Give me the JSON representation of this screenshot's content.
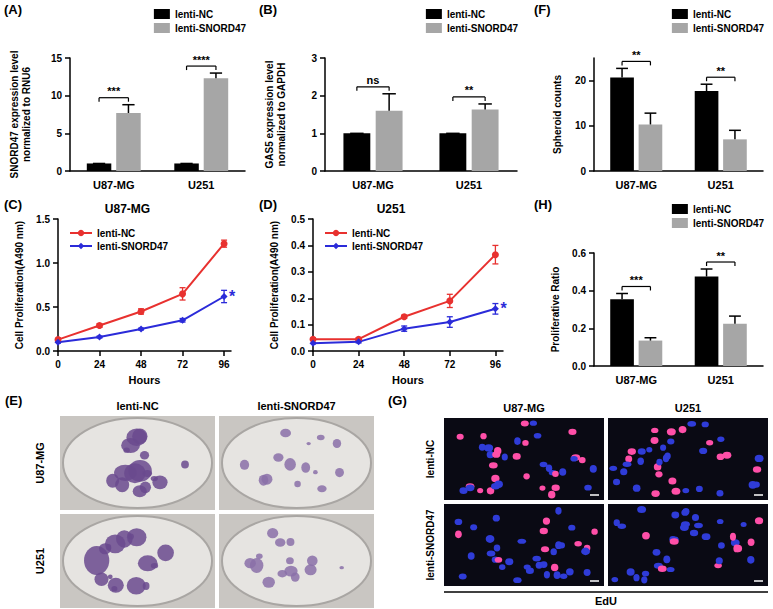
{
  "chart_data": [
    {
      "type": "bar",
      "panel_label": "(A)",
      "categories": [
        "U87-MG",
        "U251"
      ],
      "ylabel": [
        "SNORD47 expression level",
        "normalized to RNU6"
      ],
      "ylim": [
        0,
        15
      ],
      "yticks": [
        0,
        5,
        10,
        15
      ],
      "legend": "top right",
      "grid": false,
      "series": [
        {
          "name": "lenti-NC",
          "color": "#000000",
          "values": [
            1,
            1
          ],
          "errors": [
            0,
            0
          ]
        },
        {
          "name": "lenti-SNORD47",
          "color": "#a6a6a6",
          "values": [
            7.7,
            12.3
          ],
          "errors": [
            1.1,
            0.7
          ]
        }
      ],
      "significance": [
        "***",
        "****"
      ]
    },
    {
      "type": "bar",
      "panel_label": "(B)",
      "categories": [
        "U87-MG",
        "U251"
      ],
      "ylabel": [
        "GAS5 expression level",
        "normalized to GAPDH"
      ],
      "ylim": [
        0,
        3
      ],
      "yticks": [
        0,
        1,
        2,
        3
      ],
      "legend": "top right",
      "grid": false,
      "series": [
        {
          "name": "lenti-NC",
          "color": "#000000",
          "values": [
            1,
            1
          ],
          "errors": [
            0,
            0
          ]
        },
        {
          "name": "lenti-SNORD47",
          "color": "#a6a6a6",
          "values": [
            1.6,
            1.63
          ],
          "errors": [
            0.45,
            0.15
          ]
        }
      ],
      "significance": [
        "ns",
        "**"
      ]
    },
    {
      "type": "bar",
      "panel_label": "(F)",
      "categories": [
        "U87-MG",
        "U251"
      ],
      "ylabel": [
        "Spheroid counts"
      ],
      "ylim": [
        0,
        25
      ],
      "yticks": [
        0,
        10,
        20
      ],
      "legend": "top right",
      "grid": false,
      "series": [
        {
          "name": "lenti-NC",
          "color": "#000000",
          "values": [
            20.7,
            17.7
          ],
          "errors": [
            2.0,
            1.5
          ]
        },
        {
          "name": "lenti-SNORD47",
          "color": "#a6a6a6",
          "values": [
            10.3,
            7.0
          ],
          "errors": [
            2.5,
            2.0
          ]
        }
      ],
      "significance": [
        "**",
        "**"
      ]
    },
    {
      "type": "line",
      "panel_label": "(C)",
      "title": "U87-MG",
      "xlabel": "Hours",
      "ylabel": "Cell Proliferation(A490 nm)",
      "x": [
        0,
        24,
        48,
        72,
        96
      ],
      "xlim": [
        0,
        100
      ],
      "xticks": [
        0,
        24,
        48,
        72,
        96
      ],
      "ylim": [
        0,
        1.5
      ],
      "yticks": [
        {
          "value": 0,
          "label": "0.0"
        },
        {
          "value": 0.5,
          "label": "0.5"
        },
        {
          "value": 1,
          "label": "1.0"
        },
        {
          "value": 1.5,
          "label": "1.5"
        }
      ],
      "legend": "top left",
      "grid": false,
      "series": [
        {
          "name": "lenti-NC",
          "color": "#e8312f",
          "marker": "circle",
          "values": [
            0.13,
            0.29,
            0.45,
            0.65,
            1.22
          ],
          "errors": [
            0.02,
            0.02,
            0.03,
            0.07,
            0.04
          ]
        },
        {
          "name": "lenti-SNORD47",
          "color": "#2b2bd9",
          "marker": "diamond",
          "values": [
            0.1,
            0.16,
            0.25,
            0.35,
            0.62
          ],
          "errors": [
            0.01,
            0.01,
            0.01,
            0.02,
            0.07
          ],
          "annotation": "*"
        }
      ]
    },
    {
      "type": "line",
      "panel_label": "(D)",
      "title": "U251",
      "xlabel": "Hours",
      "ylabel": "Cell Proliferation(A490 nm)",
      "x": [
        0,
        24,
        48,
        72,
        96
      ],
      "xlim": [
        0,
        100
      ],
      "xticks": [
        0,
        24,
        48,
        72,
        96
      ],
      "ylim": [
        0,
        0.5
      ],
      "yticks": [
        {
          "value": 0,
          "label": "0.0"
        },
        {
          "value": 0.1,
          "label": "0.1"
        },
        {
          "value": 0.2,
          "label": "0.2"
        },
        {
          "value": 0.3,
          "label": "0.3"
        },
        {
          "value": 0.4,
          "label": "0.4"
        },
        {
          "value": 0.5,
          "label": "0.5"
        }
      ],
      "legend": "top left",
      "grid": false,
      "series": [
        {
          "name": "lenti-NC",
          "color": "#e8312f",
          "marker": "circle",
          "values": [
            0.045,
            0.045,
            0.13,
            0.19,
            0.365
          ],
          "errors": [
            0.005,
            0.005,
            0.006,
            0.025,
            0.035
          ]
        },
        {
          "name": "lenti-SNORD47",
          "color": "#2b2bd9",
          "marker": "diamond",
          "values": [
            0.03,
            0.035,
            0.085,
            0.11,
            0.16
          ],
          "errors": [
            0.003,
            0.004,
            0.01,
            0.02,
            0.02
          ],
          "annotation": "*"
        }
      ]
    },
    {
      "type": "bar",
      "panel_label": "(H)",
      "categories": [
        "U87-MG",
        "U251"
      ],
      "ylabel": [
        "Proliferative Ratio"
      ],
      "ylim": [
        0,
        0.6
      ],
      "yticks": [
        {
          "value": 0,
          "label": "0.0"
        },
        {
          "value": 0.2,
          "label": "0.2"
        },
        {
          "value": 0.4,
          "label": "0.4"
        },
        {
          "value": 0.6,
          "label": "0.6"
        }
      ],
      "legend": "top right",
      "grid": false,
      "series": [
        {
          "name": "lenti-NC",
          "color": "#000000",
          "values": [
            0.355,
            0.475
          ],
          "errors": [
            0.03,
            0.04
          ]
        },
        {
          "name": "lenti-SNORD47",
          "color": "#a6a6a6",
          "values": [
            0.135,
            0.225
          ],
          "errors": [
            0.015,
            0.04
          ]
        }
      ],
      "significance": [
        "***",
        "**"
      ]
    },
    {
      "type": "image",
      "panel_label": "(E)",
      "columns": [
        "lenti-NC",
        "lenti-SNORD47"
      ],
      "rows": [
        "U87-MG",
        "U251"
      ]
    },
    {
      "type": "image",
      "panel_label": "(G)",
      "columns": [
        "U87-MG",
        "U251"
      ],
      "rows": [
        "lenti-NC",
        "lenti-SNORD47"
      ],
      "xlabel": "EdU"
    }
  ]
}
